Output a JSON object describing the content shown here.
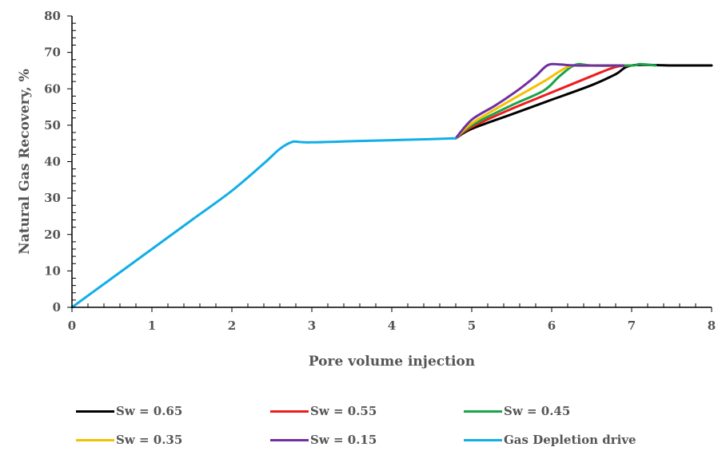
{
  "chart_data": {
    "type": "line",
    "title": "",
    "xlabel": "Pore volume injection",
    "ylabel": "Natural Gas Recovery, %",
    "xlim": [
      0,
      8
    ],
    "ylim": [
      0,
      80
    ],
    "xticks": [
      "0",
      "1",
      "2",
      "3",
      "4",
      "5",
      "6",
      "7",
      "8"
    ],
    "yticks": [
      "0",
      "10",
      "20",
      "30",
      "40",
      "50",
      "60",
      "70",
      "80"
    ],
    "grid": false,
    "legend_position": "bottom",
    "series": [
      {
        "name": "Sw = 0.65",
        "color": "#000000",
        "points": [
          [
            4.8,
            46.4
          ],
          [
            5.0,
            49.0
          ],
          [
            5.5,
            53.0
          ],
          [
            6.0,
            57.0
          ],
          [
            6.5,
            61.0
          ],
          [
            6.8,
            64.0
          ],
          [
            7.0,
            66.4
          ],
          [
            7.5,
            66.4
          ],
          [
            8.0,
            66.4
          ]
        ]
      },
      {
        "name": "Sw = 0.55",
        "color": "#ee1c1c",
        "points": [
          [
            4.8,
            46.4
          ],
          [
            5.0,
            49.5
          ],
          [
            5.5,
            54.5
          ],
          [
            6.0,
            59.0
          ],
          [
            6.5,
            63.5
          ],
          [
            6.8,
            66.0
          ],
          [
            7.0,
            66.4
          ]
        ]
      },
      {
        "name": "Sw = 0.45",
        "color": "#1aa34a",
        "points": [
          [
            4.8,
            46.4
          ],
          [
            5.0,
            50.0
          ],
          [
            5.5,
            55.5
          ],
          [
            5.9,
            59.5
          ],
          [
            6.1,
            63.5
          ],
          [
            6.3,
            66.6
          ],
          [
            6.5,
            66.4
          ],
          [
            7.0,
            66.4
          ],
          [
            7.1,
            66.8
          ],
          [
            7.3,
            66.4
          ]
        ]
      },
      {
        "name": "Sw = 0.35",
        "color": "#f5c000",
        "points": [
          [
            4.8,
            46.4
          ],
          [
            5.0,
            50.5
          ],
          [
            5.5,
            57.0
          ],
          [
            5.9,
            62.0
          ],
          [
            6.2,
            66.0
          ],
          [
            6.4,
            66.4
          ],
          [
            6.9,
            66.4
          ]
        ]
      },
      {
        "name": "Sw = 0.15",
        "color": "#7030a0",
        "points": [
          [
            4.8,
            46.4
          ],
          [
            5.0,
            51.5
          ],
          [
            5.3,
            55.5
          ],
          [
            5.6,
            60.0
          ],
          [
            5.8,
            63.5
          ],
          [
            5.95,
            66.5
          ],
          [
            6.1,
            66.7
          ],
          [
            6.3,
            66.4
          ],
          [
            6.9,
            66.4
          ]
        ]
      },
      {
        "name": "Gas Depletion drive",
        "color": "#12aee6",
        "points": [
          [
            0,
            0
          ],
          [
            0.5,
            8
          ],
          [
            1.0,
            16
          ],
          [
            1.5,
            24
          ],
          [
            2.0,
            32
          ],
          [
            2.4,
            39.5
          ],
          [
            2.6,
            43.5
          ],
          [
            2.75,
            45.4
          ],
          [
            2.85,
            45.4
          ],
          [
            3.0,
            45.3
          ],
          [
            3.5,
            45.6
          ],
          [
            4.0,
            45.9
          ],
          [
            4.5,
            46.2
          ],
          [
            4.8,
            46.4
          ]
        ]
      }
    ]
  }
}
